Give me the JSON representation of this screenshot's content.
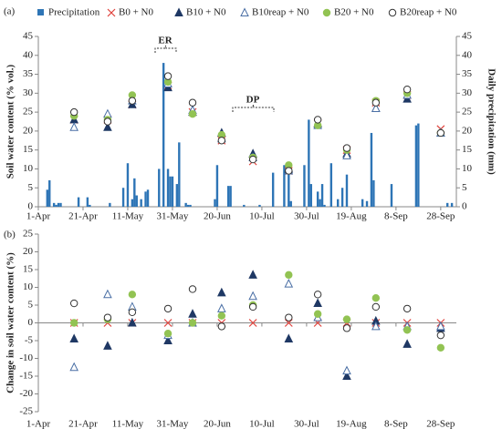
{
  "chart_data": [
    {
      "type": "scatter",
      "label": "(a)",
      "ylabel": "Soil water content (% vol.)",
      "y2label": "Daily precipitation (mm)",
      "annotations": [
        "ER",
        "DP"
      ],
      "legend": true,
      "xlim": [
        0,
        187
      ],
      "xticks": [
        {
          "value": 0,
          "label": "1-Apr"
        },
        {
          "value": 20,
          "label": "21-Apr"
        },
        {
          "value": 40,
          "label": "11-May"
        },
        {
          "value": 60,
          "label": "31-May"
        },
        {
          "value": 80,
          "label": "20-Jun"
        },
        {
          "value": 100,
          "label": "10-Jul"
        },
        {
          "value": 120,
          "label": "30-Jul"
        },
        {
          "value": 140,
          "label": "19-Aug"
        },
        {
          "value": 160,
          "label": "8-Sep"
        },
        {
          "value": 180,
          "label": "28-Sep"
        }
      ],
      "ylim": [
        0,
        45
      ],
      "yticks": [
        0,
        5,
        10,
        15,
        20,
        25,
        30,
        35,
        40,
        45
      ],
      "y2lim": [
        0,
        45
      ],
      "y2ticks": [
        0,
        5,
        10,
        15,
        20,
        25,
        30,
        35,
        40,
        45
      ],
      "x": [
        16,
        31,
        42,
        58,
        69,
        82,
        96,
        112,
        125,
        138,
        151,
        165,
        180
      ],
      "series": [
        {
          "name": "Precipitation",
          "kind": "bar",
          "axis": "y2",
          "color": "#2e75b6",
          "x": [
            4,
            5,
            7,
            8,
            9,
            10,
            18,
            22,
            23,
            32,
            38,
            40,
            42,
            43,
            44,
            46,
            48,
            49,
            54,
            56,
            58,
            59,
            60,
            62,
            63,
            66,
            67,
            68,
            79,
            80,
            85,
            86,
            92,
            99,
            105,
            110,
            112,
            113,
            119,
            121,
            122,
            125,
            126,
            127,
            128,
            131,
            134,
            136,
            138,
            145,
            147,
            149,
            150,
            158,
            169,
            170,
            183,
            185
          ],
          "values": [
            4.5,
            7,
            1,
            0.5,
            1,
            1,
            2.5,
            2.5,
            0.5,
            1,
            5,
            11.5,
            2,
            7.5,
            3,
            2,
            4,
            4.5,
            10,
            38,
            10,
            8,
            8,
            6,
            17,
            1,
            0.5,
            0.5,
            2,
            11,
            5.5,
            5.5,
            0.5,
            0.5,
            9,
            11,
            8.5,
            1.5,
            11,
            23,
            6,
            4,
            2,
            6,
            0.5,
            11.5,
            2,
            5,
            8.5,
            2,
            1.5,
            19.5,
            7,
            6,
            21.5,
            22,
            1,
            1
          ]
        },
        {
          "name": "B0 + N0",
          "marker": "x",
          "color": "#e0403a",
          "values": [
            23,
            23,
            27,
            32,
            25,
            17.5,
            12,
            9.5,
            22,
            15,
            27.5,
            29.5,
            20.5
          ]
        },
        {
          "name": "B10 + N0",
          "marker": "triangle",
          "color": "#1f3864",
          "values": [
            23,
            21,
            27,
            31.5,
            25,
            19.5,
            14,
            10,
            22,
            14,
            26,
            28.5,
            19.5
          ]
        },
        {
          "name": "B10reap + N0",
          "marker": "triangle-open",
          "color": "#4a6fa5",
          "values": [
            21,
            24.5,
            28,
            32.5,
            25.5,
            18,
            13,
            9.5,
            21.5,
            13.5,
            26,
            29.5,
            19.5
          ]
        },
        {
          "name": "B20 + N0",
          "marker": "circle",
          "color": "#92c353",
          "values": [
            24,
            23,
            29.5,
            33,
            24.5,
            19,
            13,
            11,
            21.5,
            15,
            28,
            30,
            19.5
          ]
        },
        {
          "name": "B20reap + N0",
          "marker": "circle-open",
          "color": "#333333",
          "values": [
            25,
            22.5,
            28,
            34.5,
            27.5,
            17.5,
            12.5,
            9.5,
            23,
            15.5,
            27.5,
            31,
            19.5
          ]
        }
      ]
    },
    {
      "type": "scatter",
      "label": "(b)",
      "ylabel": "Change in soil water content (%)",
      "zero_line": true,
      "xlim": [
        0,
        187
      ],
      "xticks": [
        {
          "value": 0,
          "label": "1-Apr"
        },
        {
          "value": 20,
          "label": "21-Apr"
        },
        {
          "value": 40,
          "label": "11-May"
        },
        {
          "value": 60,
          "label": "31-May"
        },
        {
          "value": 80,
          "label": "20-Jun"
        },
        {
          "value": 100,
          "label": "10-Jul"
        },
        {
          "value": 120,
          "label": "30-Jul"
        },
        {
          "value": 140,
          "label": "19-Aug"
        },
        {
          "value": 160,
          "label": "8-Sep"
        },
        {
          "value": 180,
          "label": "28-Sep"
        }
      ],
      "ylim": [
        -25,
        25
      ],
      "yticks": [
        -25,
        -20,
        -15,
        -10,
        -5,
        0,
        5,
        10,
        15,
        20,
        25
      ],
      "x": [
        16,
        31,
        42,
        58,
        69,
        82,
        96,
        112,
        125,
        138,
        151,
        165,
        180
      ],
      "series": [
        {
          "name": "B0 + N0",
          "marker": "x",
          "color": "#e0403a",
          "values": [
            0,
            0,
            0,
            0,
            0,
            0,
            0,
            0,
            0,
            0,
            0,
            0,
            0
          ]
        },
        {
          "name": "B10 + N0",
          "marker": "triangle",
          "color": "#1f3864",
          "values": [
            -4.5,
            -6.5,
            0,
            -5,
            2.5,
            8.5,
            13.5,
            -4.5,
            5.5,
            -15,
            0.5,
            -6,
            -1.5
          ]
        },
        {
          "name": "B10reap + N0",
          "marker": "triangle-open",
          "color": "#4a6fa5",
          "values": [
            -12.5,
            8,
            4.5,
            -3.5,
            0,
            4,
            7.5,
            11,
            1.5,
            -13.5,
            -1,
            -1,
            -1
          ]
        },
        {
          "name": "B20 + N0",
          "marker": "circle",
          "color": "#92c353",
          "values": [
            0,
            1,
            8,
            -3,
            0,
            2,
            5,
            13.5,
            2.5,
            1,
            7,
            -2,
            -7
          ]
        },
        {
          "name": "B20reap + N0",
          "marker": "circle-open",
          "color": "#333333",
          "values": [
            5.5,
            1.5,
            3,
            4,
            9.5,
            -1,
            4.5,
            1.5,
            8,
            -1.5,
            4.5,
            4,
            -3.5
          ]
        }
      ]
    }
  ]
}
